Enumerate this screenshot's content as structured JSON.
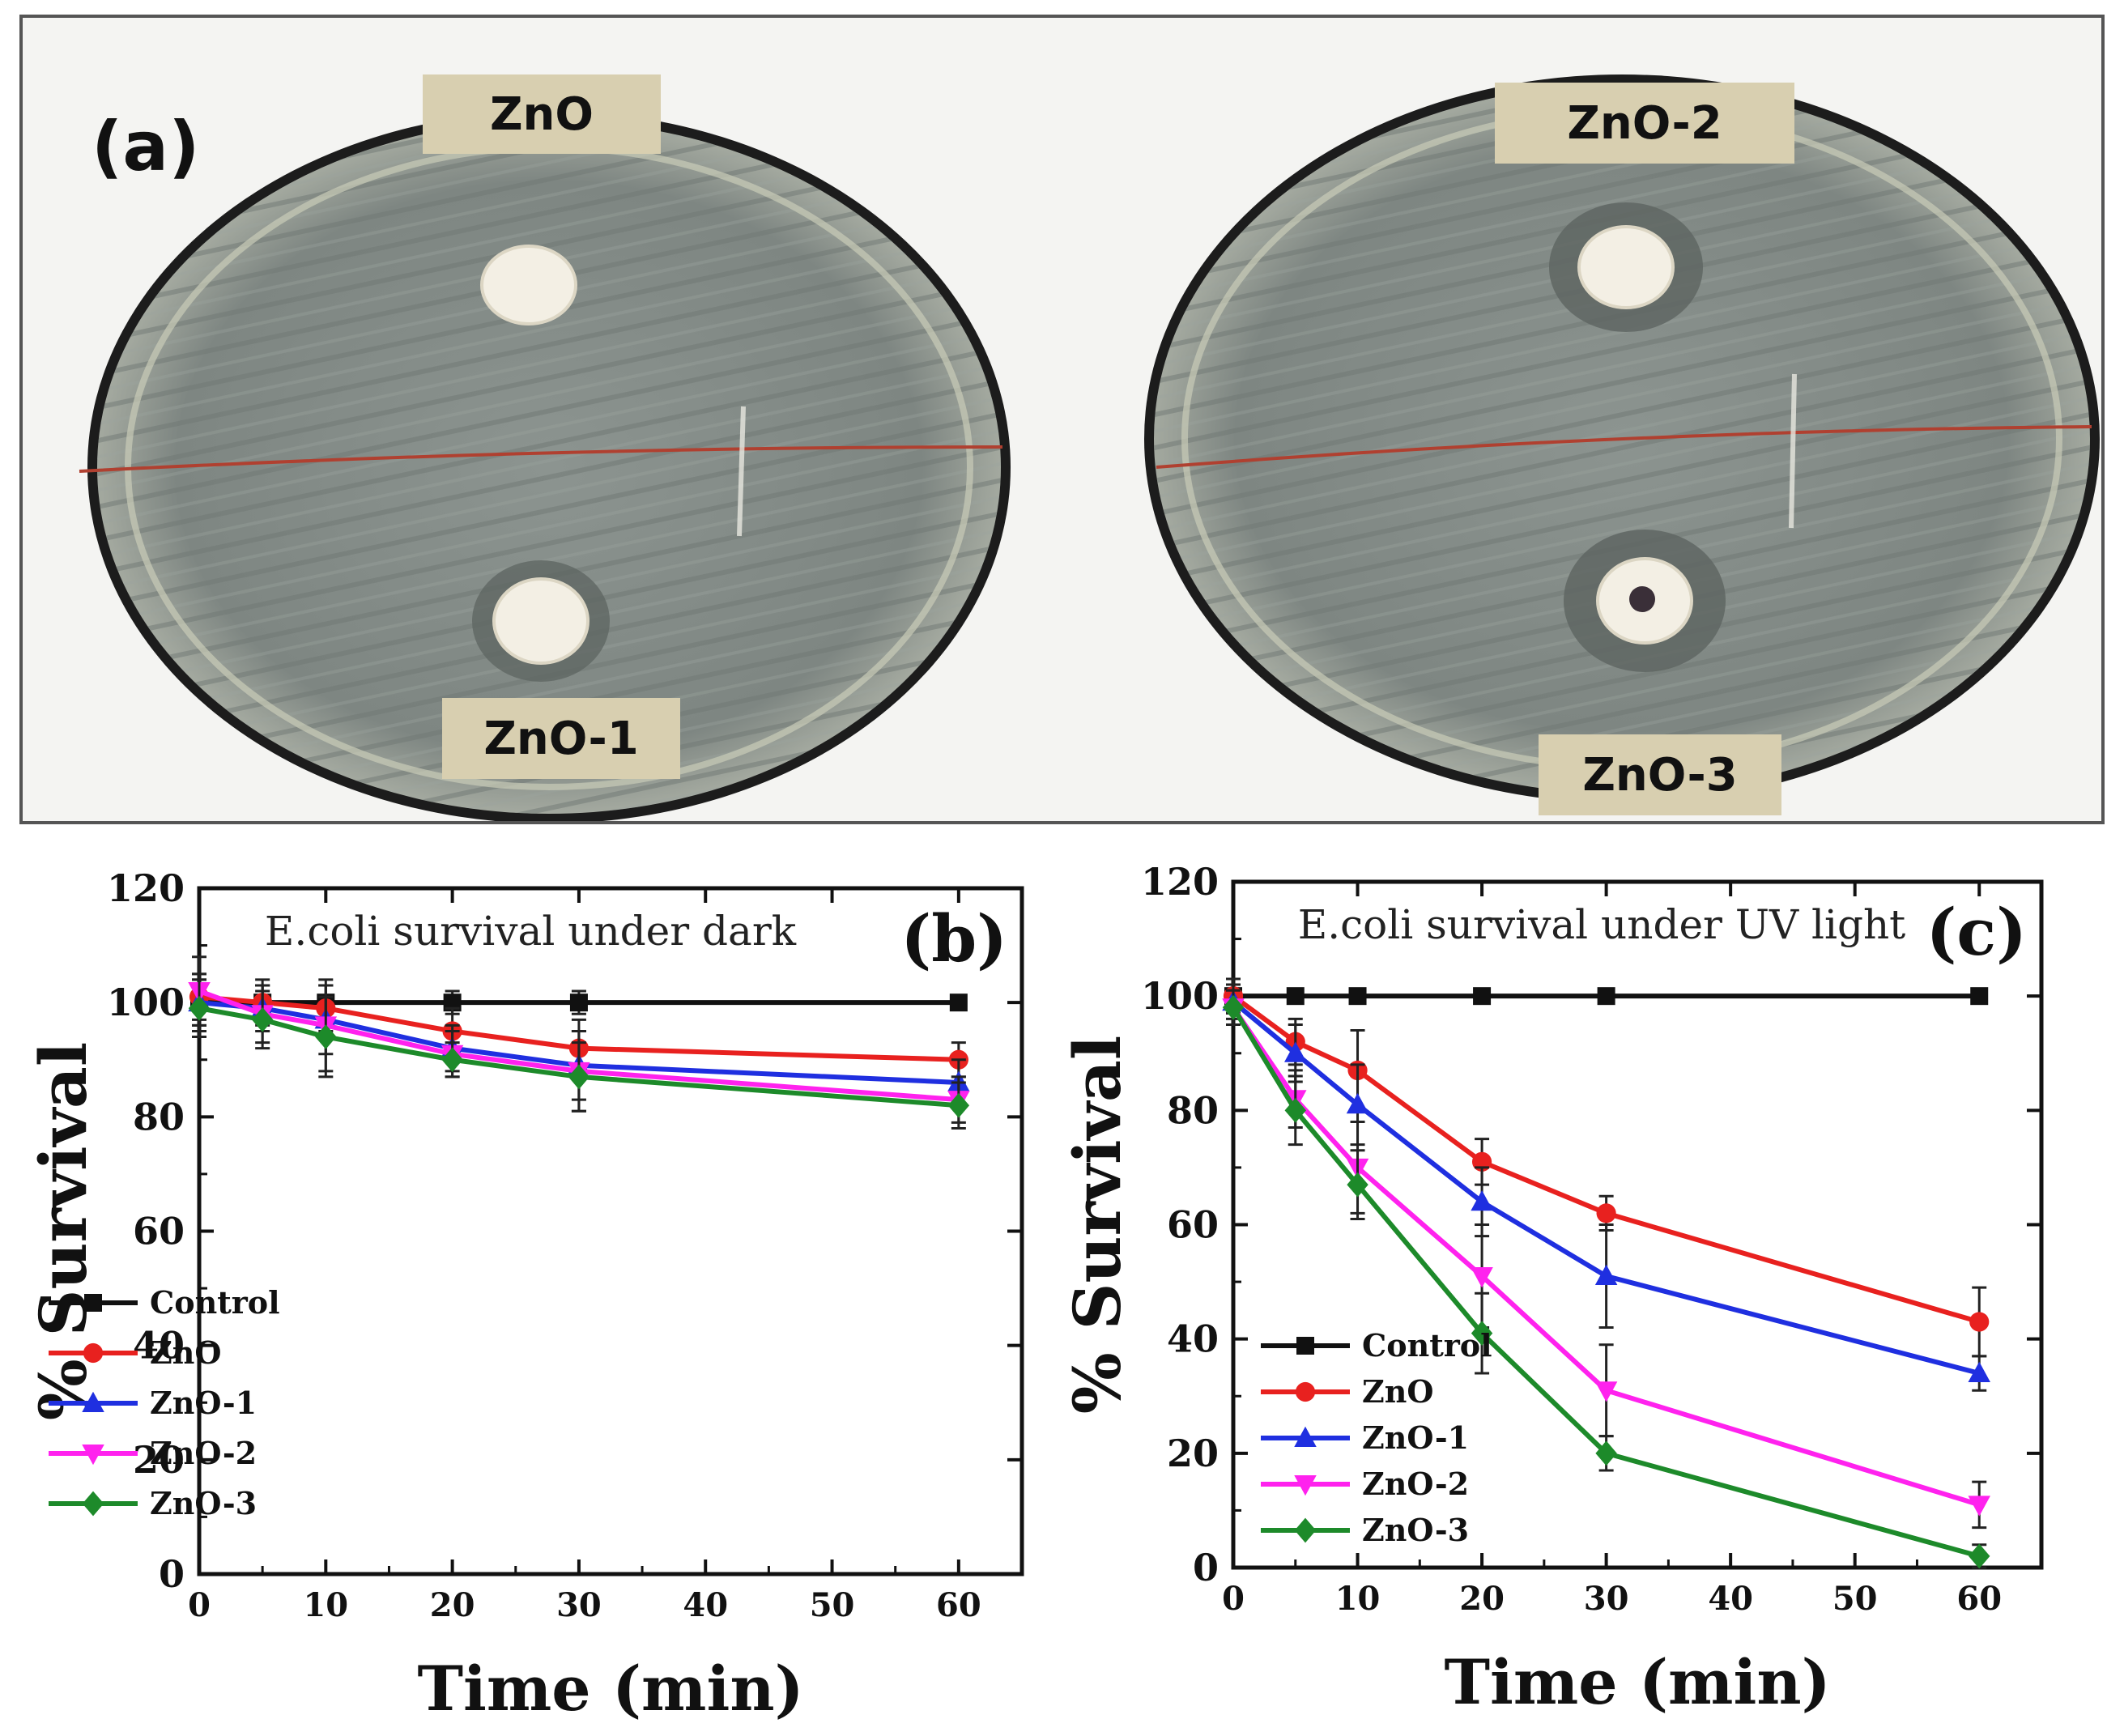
{
  "panel_a": {
    "label": "(a)",
    "tags": {
      "zno": "ZnO",
      "zno1": "ZnO-1",
      "zno2": "ZnO-2",
      "zno3": "ZnO-3"
    }
  },
  "colors": {
    "Control": "#111111",
    "ZnO": "#e8211f",
    "ZnO-1": "#1f2fe0",
    "ZnO-2": "#ff22ee",
    "ZnO-3": "#1d8a2a"
  },
  "chart_data": [
    {
      "type": "line",
      "panel": "(b)",
      "title": "E.coli survival under dark",
      "xlabel": "Time (min)",
      "ylabel": "% Survival",
      "xlim": [
        0,
        65
      ],
      "ylim": [
        0,
        120
      ],
      "xticks": [
        0,
        10,
        20,
        30,
        40,
        50,
        60
      ],
      "yticks": [
        0,
        20,
        40,
        60,
        80,
        100,
        120
      ],
      "x": [
        0,
        5,
        10,
        20,
        30,
        60
      ],
      "legend_position": "bottom-left",
      "series": [
        {
          "name": "Control",
          "marker": "square",
          "values": [
            100,
            100,
            100,
            100,
            100,
            100
          ],
          "err": [
            4,
            3,
            3,
            2,
            2,
            1
          ]
        },
        {
          "name": "ZnO",
          "marker": "circle",
          "values": [
            101,
            100,
            99,
            95,
            92,
            90
          ],
          "err": [
            4,
            4,
            4,
            4,
            5,
            3
          ]
        },
        {
          "name": "ZnO-1",
          "marker": "triangle-up",
          "values": [
            100,
            99,
            97,
            92,
            89,
            86
          ],
          "err": [
            5,
            4,
            6,
            4,
            6,
            4
          ]
        },
        {
          "name": "ZnO-2",
          "marker": "triangle-down",
          "values": [
            102,
            98,
            96,
            91,
            88,
            83
          ],
          "err": [
            6,
            5,
            8,
            4,
            7,
            4
          ]
        },
        {
          "name": "ZnO-3",
          "marker": "diamond",
          "values": [
            99,
            97,
            94,
            90,
            87,
            82
          ],
          "err": [
            5,
            5,
            7,
            3,
            6,
            4
          ]
        }
      ]
    },
    {
      "type": "line",
      "panel": "(c)",
      "title": "E.coli survival under UV light",
      "xlabel": "Time (min)",
      "ylabel": "% Survival",
      "xlim": [
        0,
        65
      ],
      "ylim": [
        0,
        120
      ],
      "xticks": [
        0,
        10,
        20,
        30,
        40,
        50,
        60
      ],
      "yticks": [
        0,
        20,
        40,
        60,
        80,
        100,
        120
      ],
      "x": [
        0,
        5,
        10,
        20,
        30,
        60
      ],
      "legend_position": "bottom-left",
      "series": [
        {
          "name": "Control",
          "marker": "square",
          "values": [
            100,
            100,
            100,
            100,
            100,
            100
          ],
          "err": [
            3,
            1,
            1,
            1,
            1,
            1
          ]
        },
        {
          "name": "ZnO",
          "marker": "circle",
          "values": [
            100,
            92,
            87,
            71,
            62,
            43
          ],
          "err": [
            3,
            4,
            7,
            4,
            3,
            6
          ]
        },
        {
          "name": "ZnO-1",
          "marker": "triangle-up",
          "values": [
            99,
            90,
            81,
            64,
            51,
            34
          ],
          "err": [
            3,
            5,
            7,
            6,
            9,
            3
          ]
        },
        {
          "name": "ZnO-2",
          "marker": "triangle-down",
          "values": [
            98,
            82,
            70,
            51,
            31,
            11
          ],
          "err": [
            3,
            5,
            8,
            9,
            8,
            4
          ]
        },
        {
          "name": "ZnO-3",
          "marker": "diamond",
          "values": [
            98,
            80,
            67,
            41,
            20,
            2
          ],
          "err": [
            3,
            6,
            6,
            7,
            3,
            2
          ]
        }
      ]
    }
  ]
}
